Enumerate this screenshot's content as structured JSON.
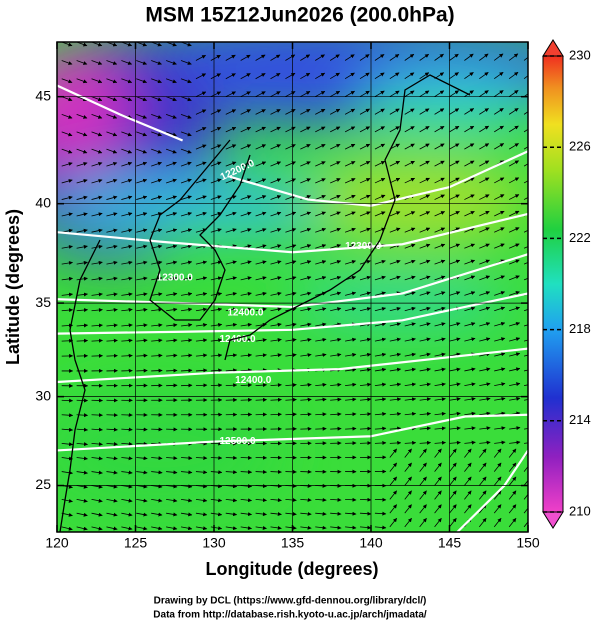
{
  "map": {
    "title": "MSM 15Z12Jun2026 (200.0hPa)",
    "x_label": "Longitude (degrees)",
    "y_label": "Latitude  (degrees)",
    "projection": "mercator",
    "xlim": [
      120,
      150
    ],
    "xticks": [
      120,
      125,
      130,
      135,
      140,
      145,
      150
    ],
    "ylim": [
      22.3,
      47.4
    ],
    "yticks": [
      25,
      30,
      35,
      40,
      45
    ],
    "grid": true,
    "colorbar": {
      "lim": [
        210,
        230
      ],
      "ticks": [
        210,
        214,
        218,
        222,
        226,
        230
      ]
    },
    "contour_labels": [
      "12200.0",
      "12300.0",
      "12300.0",
      "12400.0",
      "12400.0",
      "12400.0",
      "12500.0"
    ],
    "credits": [
      "Drawing by DCL (https://www.gfd-dennou.org/library/dcl/)",
      "Data from http://database.rish.kyoto-u.ac.jp/arch/jmadata/"
    ]
  }
}
